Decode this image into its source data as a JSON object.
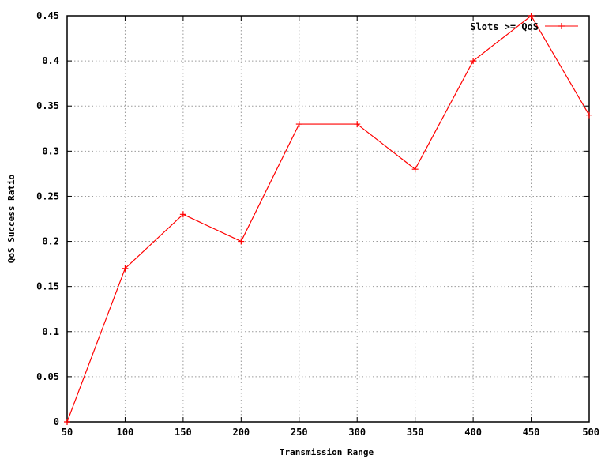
{
  "chart_data": {
    "type": "line",
    "xlabel": "Transmission Range",
    "ylabel": "QoS Success Ratio",
    "x": [
      50,
      100,
      150,
      200,
      250,
      300,
      350,
      400,
      450,
      500
    ],
    "x_ticks": [
      "50",
      "100",
      "150",
      "200",
      "250",
      "300",
      "350",
      "400",
      "450",
      "500"
    ],
    "y_ticks": [
      "0",
      "0.05",
      "0.1",
      "0.15",
      "0.2",
      "0.25",
      "0.3",
      "0.35",
      "0.4",
      "0.45"
    ],
    "xlim": [
      50,
      500
    ],
    "ylim": [
      0,
      0.45
    ],
    "grid": true,
    "legend_position": "top-right",
    "series": [
      {
        "name": "Slots >= QoS",
        "color": "#ff0000",
        "marker": "plus",
        "values": [
          0.0,
          0.17,
          0.23,
          0.2,
          0.33,
          0.33,
          0.28,
          0.4,
          0.45,
          0.34
        ]
      }
    ]
  }
}
